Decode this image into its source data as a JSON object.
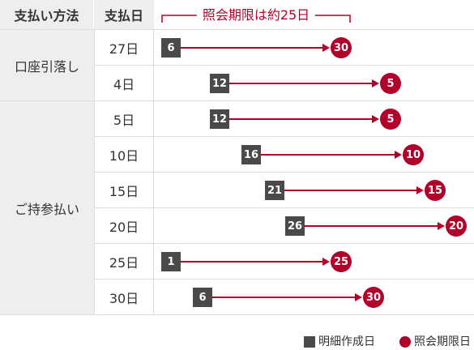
{
  "header": {
    "method_label": "支払い方法",
    "payday_label": "支払日",
    "period_label": "照会期限は約25日"
  },
  "groups": [
    {
      "label": "口座引落し",
      "rows": [
        {
          "payday": "27日",
          "statement_date": "6",
          "deadline_date": "30"
        },
        {
          "payday": "4日",
          "statement_date": "12",
          "deadline_date": "5"
        }
      ]
    },
    {
      "label": "ご持参払い",
      "rows": [
        {
          "payday": "5日",
          "statement_date": "12",
          "deadline_date": "5"
        },
        {
          "payday": "10日",
          "statement_date": "16",
          "deadline_date": "10"
        },
        {
          "payday": "15日",
          "statement_date": "21",
          "deadline_date": "15"
        },
        {
          "payday": "20日",
          "statement_date": "26",
          "deadline_date": "20"
        },
        {
          "payday": "25日",
          "statement_date": "1",
          "deadline_date": "25"
        },
        {
          "payday": "30日",
          "statement_date": "6",
          "deadline_date": "30"
        }
      ]
    }
  ],
  "legend": {
    "statement_label": "明細作成日",
    "statement_icon": "square-icon",
    "deadline_label": "照会期限日",
    "deadline_icon": "circle-icon"
  },
  "colors": {
    "accent": "#b1002a",
    "marker_dark": "#4a4a4a",
    "header_bg": "#eeeeee",
    "border": "#dddddd",
    "text": "#333333"
  }
}
